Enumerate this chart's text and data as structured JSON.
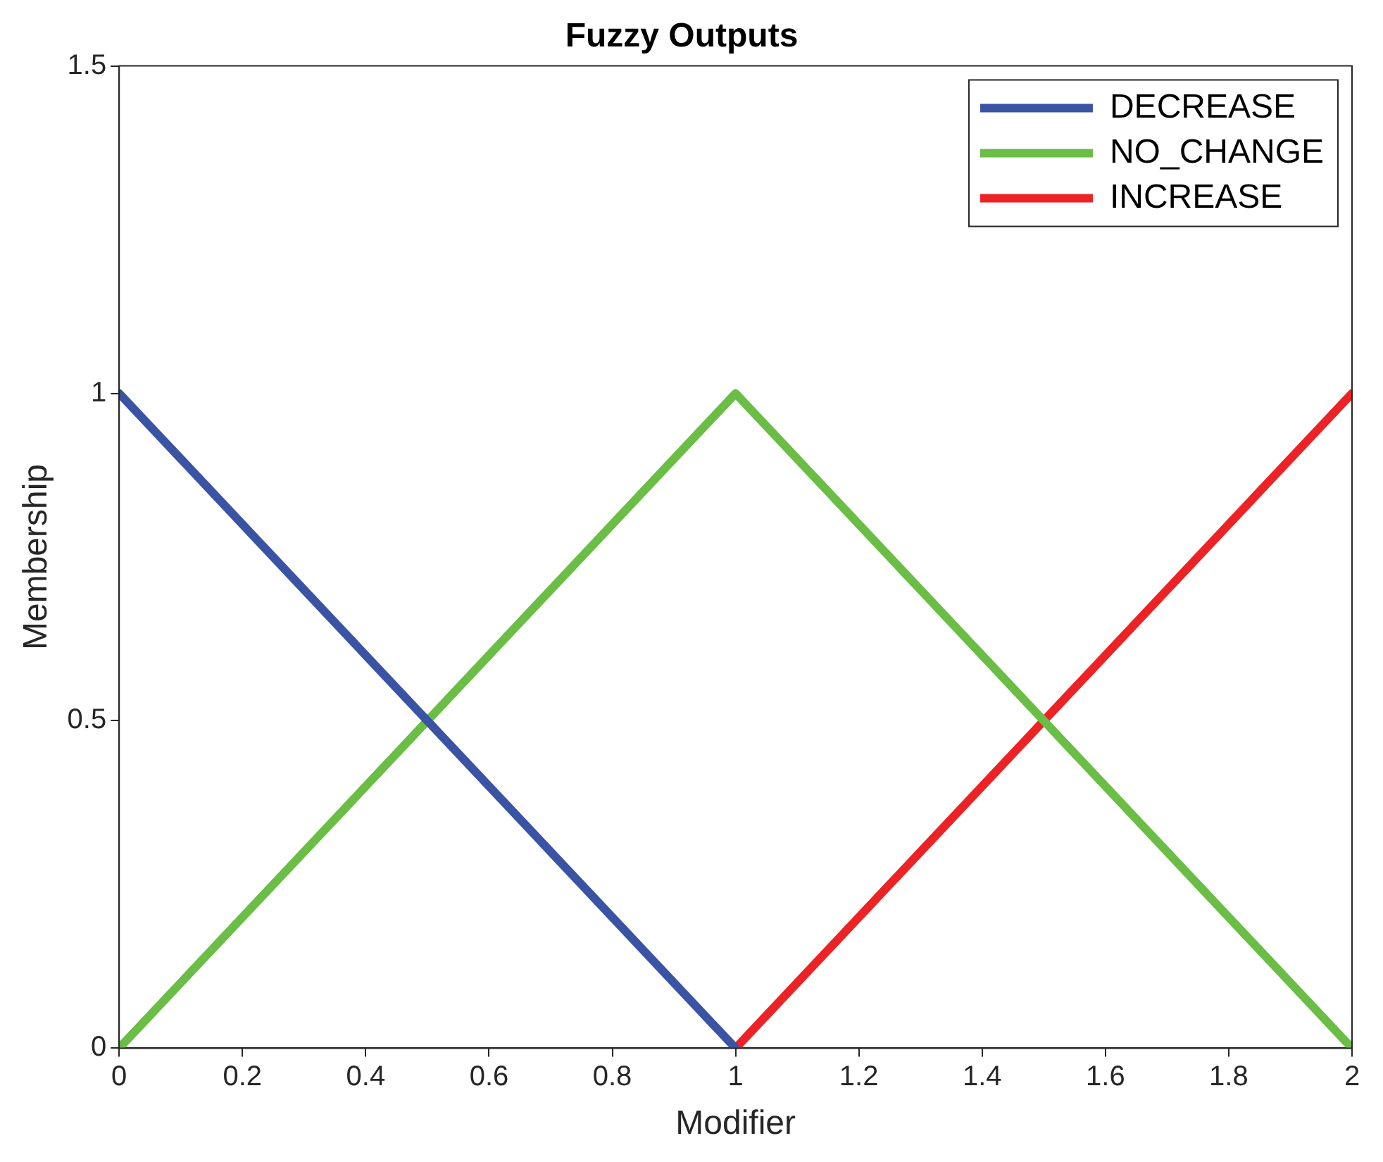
{
  "chart_data": {
    "type": "line",
    "title": "Fuzzy Outputs",
    "xlabel": "Modifier",
    "ylabel": "Membership",
    "series": [
      {
        "name": "DECREASE",
        "color": "#3a53a4",
        "x": [
          0,
          1
        ],
        "values": [
          1,
          0
        ]
      },
      {
        "name": "NO_CHANGE",
        "color": "#6abd45",
        "x": [
          0,
          1,
          2
        ],
        "values": [
          0,
          1,
          0
        ]
      },
      {
        "name": "INCREASE",
        "color": "#ed2224",
        "x": [
          1,
          2
        ],
        "values": [
          0,
          1
        ]
      }
    ],
    "xlim": [
      0,
      2
    ],
    "xticks": [
      0,
      0.2,
      0.4,
      0.6,
      0.8,
      1,
      1.2,
      1.4,
      1.6,
      1.8,
      2
    ],
    "ylim": [
      0,
      1.5
    ],
    "yticks": [
      0,
      0.5,
      1,
      1.5
    ],
    "legend": "top right"
  }
}
